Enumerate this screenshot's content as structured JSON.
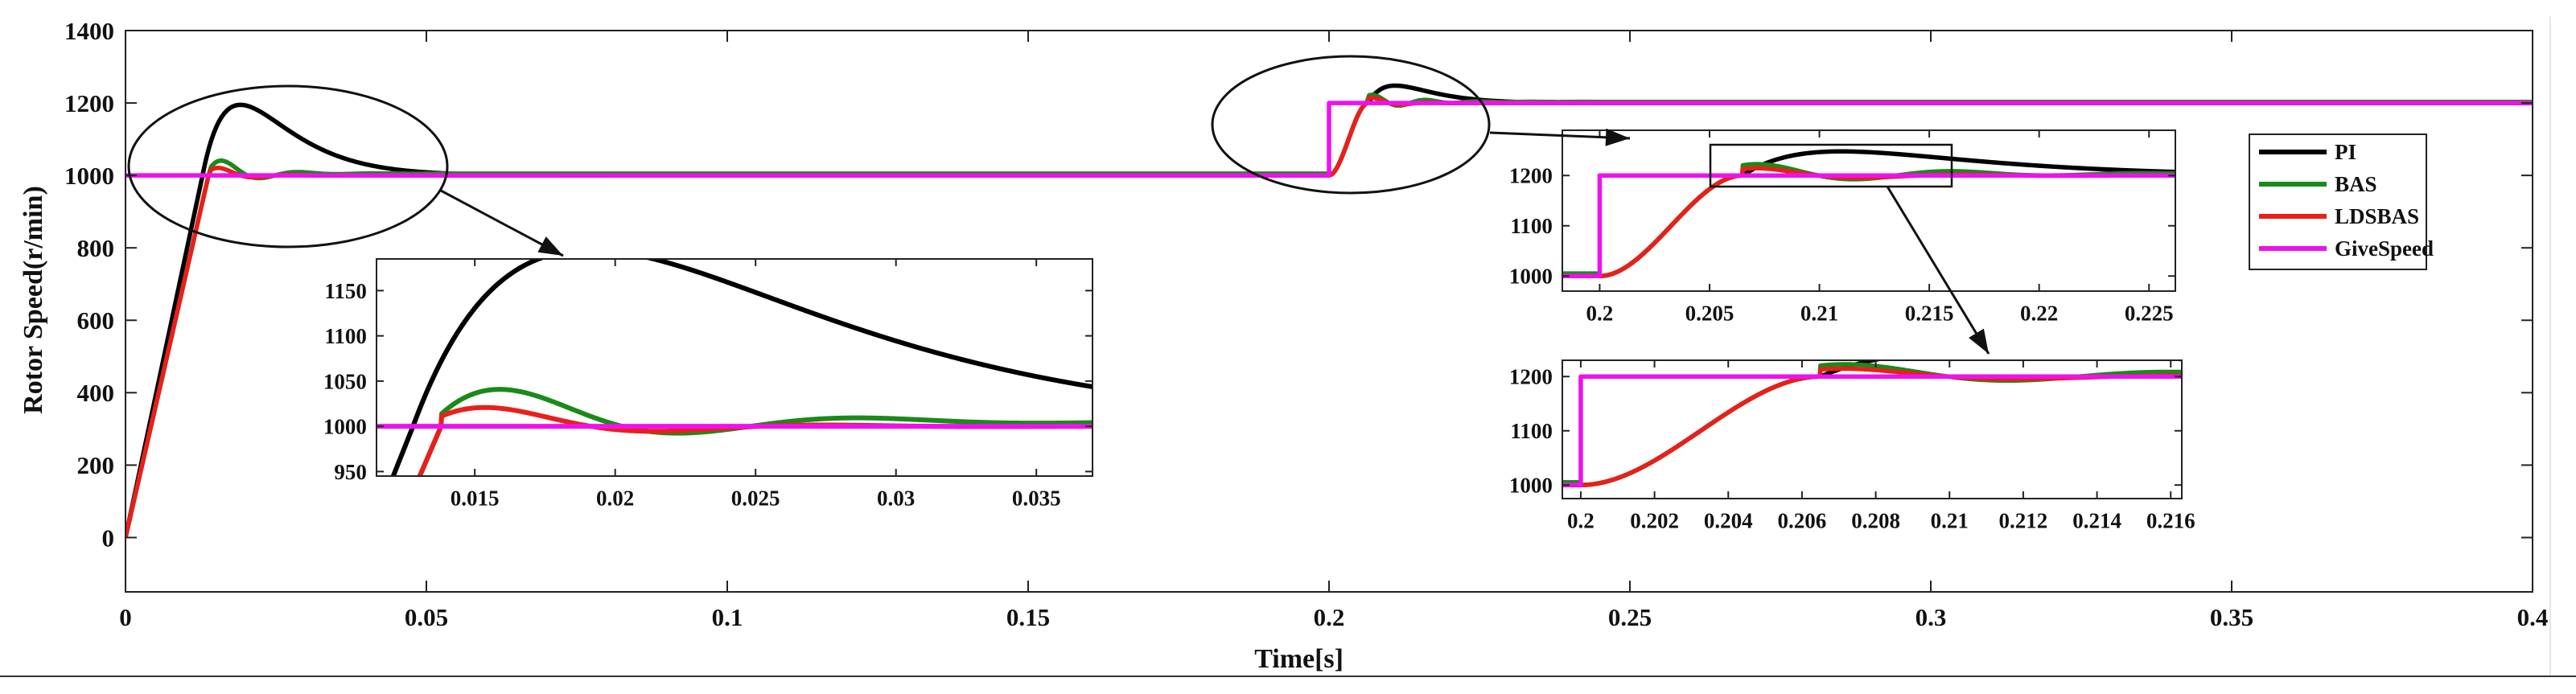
{
  "chart_data": {
    "type": "line",
    "xlabel": "Time[s]",
    "ylabel": "Rotor Speed(r/min)",
    "xlim": [
      0,
      0.4
    ],
    "ylim": [
      -150,
      1400
    ],
    "xticks": [
      0,
      0.05,
      0.1,
      0.15,
      0.2,
      0.25,
      0.3,
      0.35,
      0.4
    ],
    "xtick_labels": [
      "0",
      "0.05",
      "0.1",
      "0.15",
      "0.2",
      "0.25",
      "0.3",
      "0.35",
      "0.4"
    ],
    "yticks": [
      0,
      200,
      400,
      600,
      800,
      1000,
      1200,
      1400
    ],
    "ytick_labels": [
      "0",
      "200",
      "400",
      "600",
      "800",
      "1000",
      "1200",
      "1400"
    ],
    "legend_position": "right",
    "series": [
      {
        "name": "PI",
        "color": "#000000"
      },
      {
        "name": "BAS",
        "color": "#1a8a1a"
      },
      {
        "name": "LDSBAS",
        "color": "#e8201a"
      },
      {
        "name": "GiveSpeed",
        "color": "#ee11ee"
      }
    ],
    "insets": [
      {
        "id": "zoom-startup",
        "xlim": [
          0.0115,
          0.037
        ],
        "ylim": [
          945,
          1185
        ],
        "xticks": [
          0.015,
          0.02,
          0.025,
          0.03,
          0.035
        ],
        "xtick_labels": [
          "0.015",
          "0.02",
          "0.025",
          "0.03",
          "0.035"
        ],
        "yticks": [
          950,
          1000,
          1050,
          1100,
          1150
        ],
        "ytick_labels": [
          "950",
          "1000",
          "1050",
          "1100",
          "1150"
        ]
      },
      {
        "id": "zoom-step",
        "xlim": [
          0.1983,
          0.2262
        ],
        "ylim": [
          970,
          1290
        ],
        "xticks": [
          0.2,
          0.205,
          0.21,
          0.215,
          0.22,
          0.225
        ],
        "xtick_labels": [
          "0.2",
          "0.205",
          "0.21",
          "0.215",
          "0.22",
          "0.225"
        ],
        "yticks": [
          1000,
          1100,
          1200
        ],
        "ytick_labels": [
          "1000",
          "1100",
          "1200"
        ]
      },
      {
        "id": "zoom-step-detail",
        "xlim": [
          0.1995,
          0.2163
        ],
        "ylim": [
          975,
          1230
        ],
        "xticks": [
          0.2,
          0.202,
          0.204,
          0.206,
          0.208,
          0.21,
          0.212,
          0.214,
          0.216
        ],
        "xtick_labels": [
          "0.2",
          "0.202",
          "0.204",
          "0.206",
          "0.208",
          "0.21",
          "0.212",
          "0.214",
          "0.216"
        ],
        "yticks": [
          1000,
          1100,
          1200
        ],
        "ytick_labels": [
          "1000",
          "1100",
          "1200"
        ]
      }
    ]
  }
}
